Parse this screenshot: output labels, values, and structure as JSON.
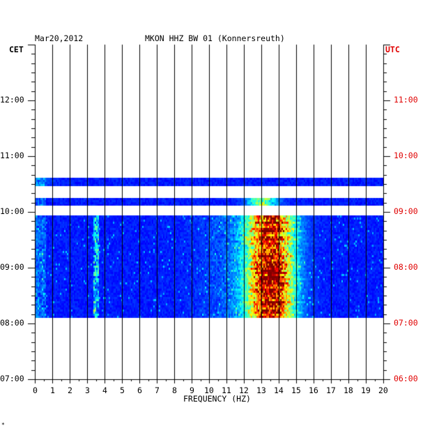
{
  "header": {
    "date": "Mar20,2012",
    "station": "MKON HHZ BW 01 (Konnersreuth)",
    "left_tz": "CET",
    "right_tz": "UTC",
    "corner_mark": "*"
  },
  "chart_data": {
    "type": "heatmap",
    "title": "MKON HHZ BW 01 (Konnersreuth)",
    "date": "Mar20,2012",
    "xlabel": "FREQUENCY (HZ)",
    "xlim": [
      0,
      20
    ],
    "x_ticks": [
      "0",
      "1",
      "2",
      "3",
      "4",
      "5",
      "6",
      "7",
      "8",
      "9",
      "10",
      "11",
      "12",
      "13",
      "14",
      "15",
      "16",
      "17",
      "18",
      "19",
      "20"
    ],
    "y_left_label": "CET",
    "y_right_label": "UTC",
    "y_left_range_hours": [
      7.0,
      13.0
    ],
    "y_left_ticks": [
      "07:00",
      "08:00",
      "09:00",
      "10:00",
      "11:00",
      "12:00"
    ],
    "y_right_ticks": [
      "06:00",
      "07:00",
      "08:00",
      "09:00",
      "10:00",
      "11:00"
    ],
    "grid": true,
    "bands": [
      {
        "start_cet": "10:28",
        "end_cet": "10:37",
        "peak_freq_hz": 0.3,
        "intensity": "low"
      },
      {
        "start_cet": "10:07",
        "end_cet": "10:15",
        "peak_freq_hz": 13.0,
        "intensity": "medium"
      },
      {
        "start_cet": "08:06",
        "end_cet": "09:56",
        "peak_freq_hz": 13.5,
        "intensity": "high"
      }
    ],
    "colors": {
      "background": "#0000aa",
      "low": "#0044dd",
      "mid": "#00cccc",
      "high": "#ffff00",
      "peak": "#ff0000"
    }
  }
}
